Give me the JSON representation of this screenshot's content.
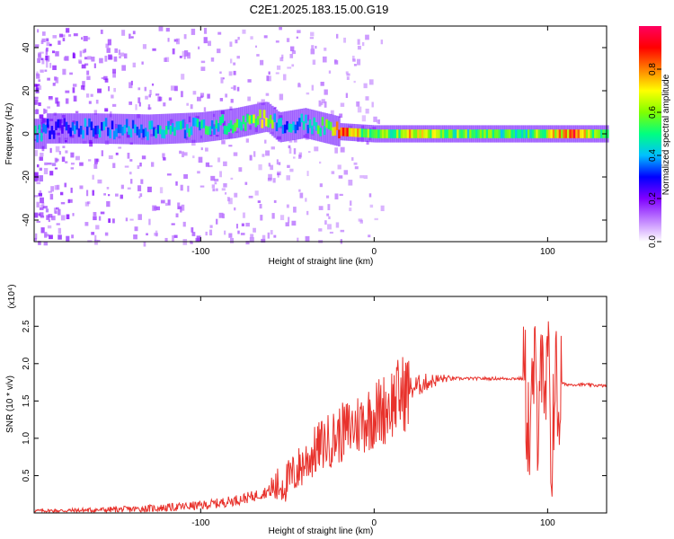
{
  "chart_data": [
    {
      "type": "heatmap",
      "title": "C2E1.2025.183.15.00.G19",
      "xlabel": "Height of straight line (km)",
      "ylabel": "Frequency (Hz)",
      "xlim": [
        -196,
        134
      ],
      "ylim": [
        -50,
        50
      ],
      "x_ticks": [
        -100,
        0,
        100
      ],
      "y_ticks": [
        -40,
        -20,
        0,
        20,
        40
      ],
      "grid": false,
      "colorbar": {
        "label": "Normalized spectral amplitude",
        "range": [
          0,
          1
        ],
        "ticks": [
          0.0,
          0.2,
          0.4,
          0.6,
          0.8
        ],
        "colors": [
          "#ffffff",
          "#c080ff",
          "#8000ff",
          "#0000ff",
          "#00c0ff",
          "#00ff80",
          "#80ff00",
          "#ffff00",
          "#ff8000",
          "#ff0000",
          "#ff0060"
        ]
      },
      "ridge": [
        {
          "x": -190,
          "freq": 2.5,
          "amp": 0.3
        },
        {
          "x": -160,
          "freq": 2.5,
          "amp": 0.4
        },
        {
          "x": -130,
          "freq": 2,
          "amp": 0.45
        },
        {
          "x": -100,
          "freq": 3,
          "amp": 0.5
        },
        {
          "x": -80,
          "freq": 5,
          "amp": 0.55
        },
        {
          "x": -62,
          "freq": 8,
          "amp": 0.7
        },
        {
          "x": -55,
          "freq": 3,
          "amp": 0.4
        },
        {
          "x": -40,
          "freq": 5,
          "amp": 0.45
        },
        {
          "x": -30,
          "freq": 3,
          "amp": 0.6
        },
        {
          "x": -20,
          "freq": 1,
          "amp": 0.9
        },
        {
          "x": 0,
          "freq": 0,
          "amp": 0.55
        },
        {
          "x": 20,
          "freq": 0,
          "amp": 0.75
        },
        {
          "x": 50,
          "freq": 0,
          "amp": 0.6
        },
        {
          "x": 85,
          "freq": 0,
          "amp": 0.55
        },
        {
          "x": 100,
          "freq": 0,
          "amp": 0.7
        },
        {
          "x": 115,
          "freq": 0,
          "amp": 0.9
        },
        {
          "x": 134,
          "freq": 0,
          "amp": 0.5
        }
      ]
    },
    {
      "type": "line",
      "xlabel": "Height of straight line (km)",
      "ylabel": "SNR (10 * v/v)",
      "y_multiplier": "(x10⁴)",
      "xlim": [
        -196,
        134
      ],
      "ylim": [
        0,
        2.9
      ],
      "x_ticks": [
        -100,
        0,
        100
      ],
      "y_ticks": [
        0.5,
        1.0,
        1.5,
        2.0,
        2.5
      ],
      "grid": false,
      "color": "#e8322c",
      "series": [
        {
          "x": [
            -196,
            -180,
            -160,
            -140,
            -120,
            -100,
            -90,
            -80,
            -70,
            -60,
            -50,
            -45,
            -40,
            -35,
            -30,
            -25,
            -20,
            -15,
            -10,
            -5,
            0,
            5,
            10,
            15,
            20,
            30,
            40,
            50,
            60,
            70,
            80,
            86,
            88,
            90,
            92,
            94,
            96,
            98,
            100,
            102,
            104,
            106,
            108,
            110,
            120,
            134
          ],
          "y": [
            0.03,
            0.03,
            0.04,
            0.05,
            0.07,
            0.1,
            0.13,
            0.17,
            0.22,
            0.3,
            0.42,
            0.55,
            0.68,
            0.8,
            0.92,
            0.98,
            1.05,
            1.12,
            1.18,
            1.25,
            1.32,
            1.38,
            1.48,
            1.58,
            1.65,
            1.75,
            1.8,
            1.8,
            1.8,
            1.8,
            1.8,
            1.8,
            1.5,
            0.8,
            2.0,
            1.2,
            2.5,
            0.9,
            2.2,
            0.6,
            1.9,
            1.4,
            1.75,
            1.72,
            1.72,
            1.7
          ]
        }
      ]
    }
  ]
}
